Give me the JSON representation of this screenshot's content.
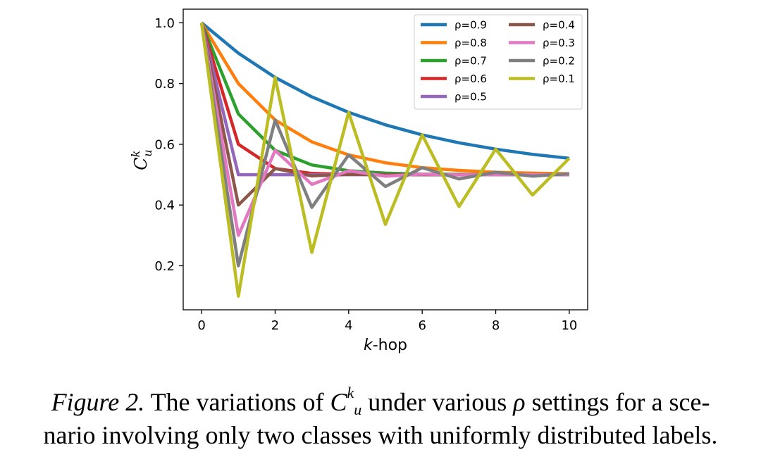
{
  "chart_data": {
    "type": "line",
    "xlabel_prefix": "k",
    "xlabel_suffix": "-hop",
    "ylabel": "C",
    "ylabel_sup": "k",
    "ylabel_sub": "u",
    "xlim": [
      -0.5,
      10.5
    ],
    "ylim": [
      0.055,
      1.045
    ],
    "xticks": [
      0,
      2,
      4,
      6,
      8,
      10
    ],
    "yticks": [
      0.2,
      0.4,
      0.6,
      0.8,
      1.0
    ],
    "ytick_labels": [
      "0.2",
      "0.4",
      "0.6",
      "0.8",
      "1.0"
    ],
    "grid": false,
    "legend_placement": "top-right",
    "legend_columns": 2,
    "x": [
      0,
      1,
      2,
      3,
      4,
      5,
      6,
      7,
      8,
      9,
      10
    ],
    "series": [
      {
        "name": "ρ=0.9",
        "color": "#1f77b4",
        "values": [
          1.0,
          0.9,
          0.82,
          0.756,
          0.705,
          0.664,
          0.631,
          0.605,
          0.584,
          0.567,
          0.554
        ]
      },
      {
        "name": "ρ=0.8",
        "color": "#ff7f0e",
        "values": [
          1.0,
          0.8,
          0.68,
          0.608,
          0.565,
          0.539,
          0.523,
          0.514,
          0.508,
          0.505,
          0.503
        ]
      },
      {
        "name": "ρ=0.7",
        "color": "#2ca02c",
        "values": [
          1.0,
          0.7,
          0.58,
          0.532,
          0.513,
          0.505,
          0.502,
          0.501,
          0.5,
          0.5,
          0.5
        ]
      },
      {
        "name": "ρ=0.6",
        "color": "#d62728",
        "values": [
          1.0,
          0.6,
          0.52,
          0.504,
          0.501,
          0.5,
          0.5,
          0.5,
          0.5,
          0.5,
          0.5
        ]
      },
      {
        "name": "ρ=0.5",
        "color": "#9467bd",
        "values": [
          1.0,
          0.5,
          0.5,
          0.5,
          0.5,
          0.5,
          0.5,
          0.5,
          0.5,
          0.5,
          0.5
        ]
      },
      {
        "name": "ρ=0.4",
        "color": "#8c564b",
        "values": [
          1.0,
          0.4,
          0.52,
          0.496,
          0.501,
          0.5,
          0.5,
          0.5,
          0.5,
          0.5,
          0.5
        ]
      },
      {
        "name": "ρ=0.3",
        "color": "#e377c2",
        "values": [
          1.0,
          0.3,
          0.58,
          0.468,
          0.513,
          0.495,
          0.502,
          0.499,
          0.5,
          0.5,
          0.5
        ]
      },
      {
        "name": "ρ=0.2",
        "color": "#7f7f7f",
        "values": [
          1.0,
          0.2,
          0.68,
          0.392,
          0.565,
          0.461,
          0.523,
          0.486,
          0.508,
          0.495,
          0.503
        ]
      },
      {
        "name": "ρ=0.1",
        "color": "#bcbd22",
        "values": [
          1.0,
          0.1,
          0.82,
          0.244,
          0.705,
          0.336,
          0.631,
          0.395,
          0.584,
          0.433,
          0.554
        ]
      }
    ]
  },
  "caption": {
    "label": "Figure 2.",
    "text_before": " The variations of ",
    "symbol": "C",
    "symbol_sup": "k",
    "symbol_sub": "u",
    "text_after": " under various ",
    "rho": "ρ",
    "text_end_line1": " settings for a sce-",
    "line2": "nario involving only two classes with uniformly distributed labels."
  }
}
